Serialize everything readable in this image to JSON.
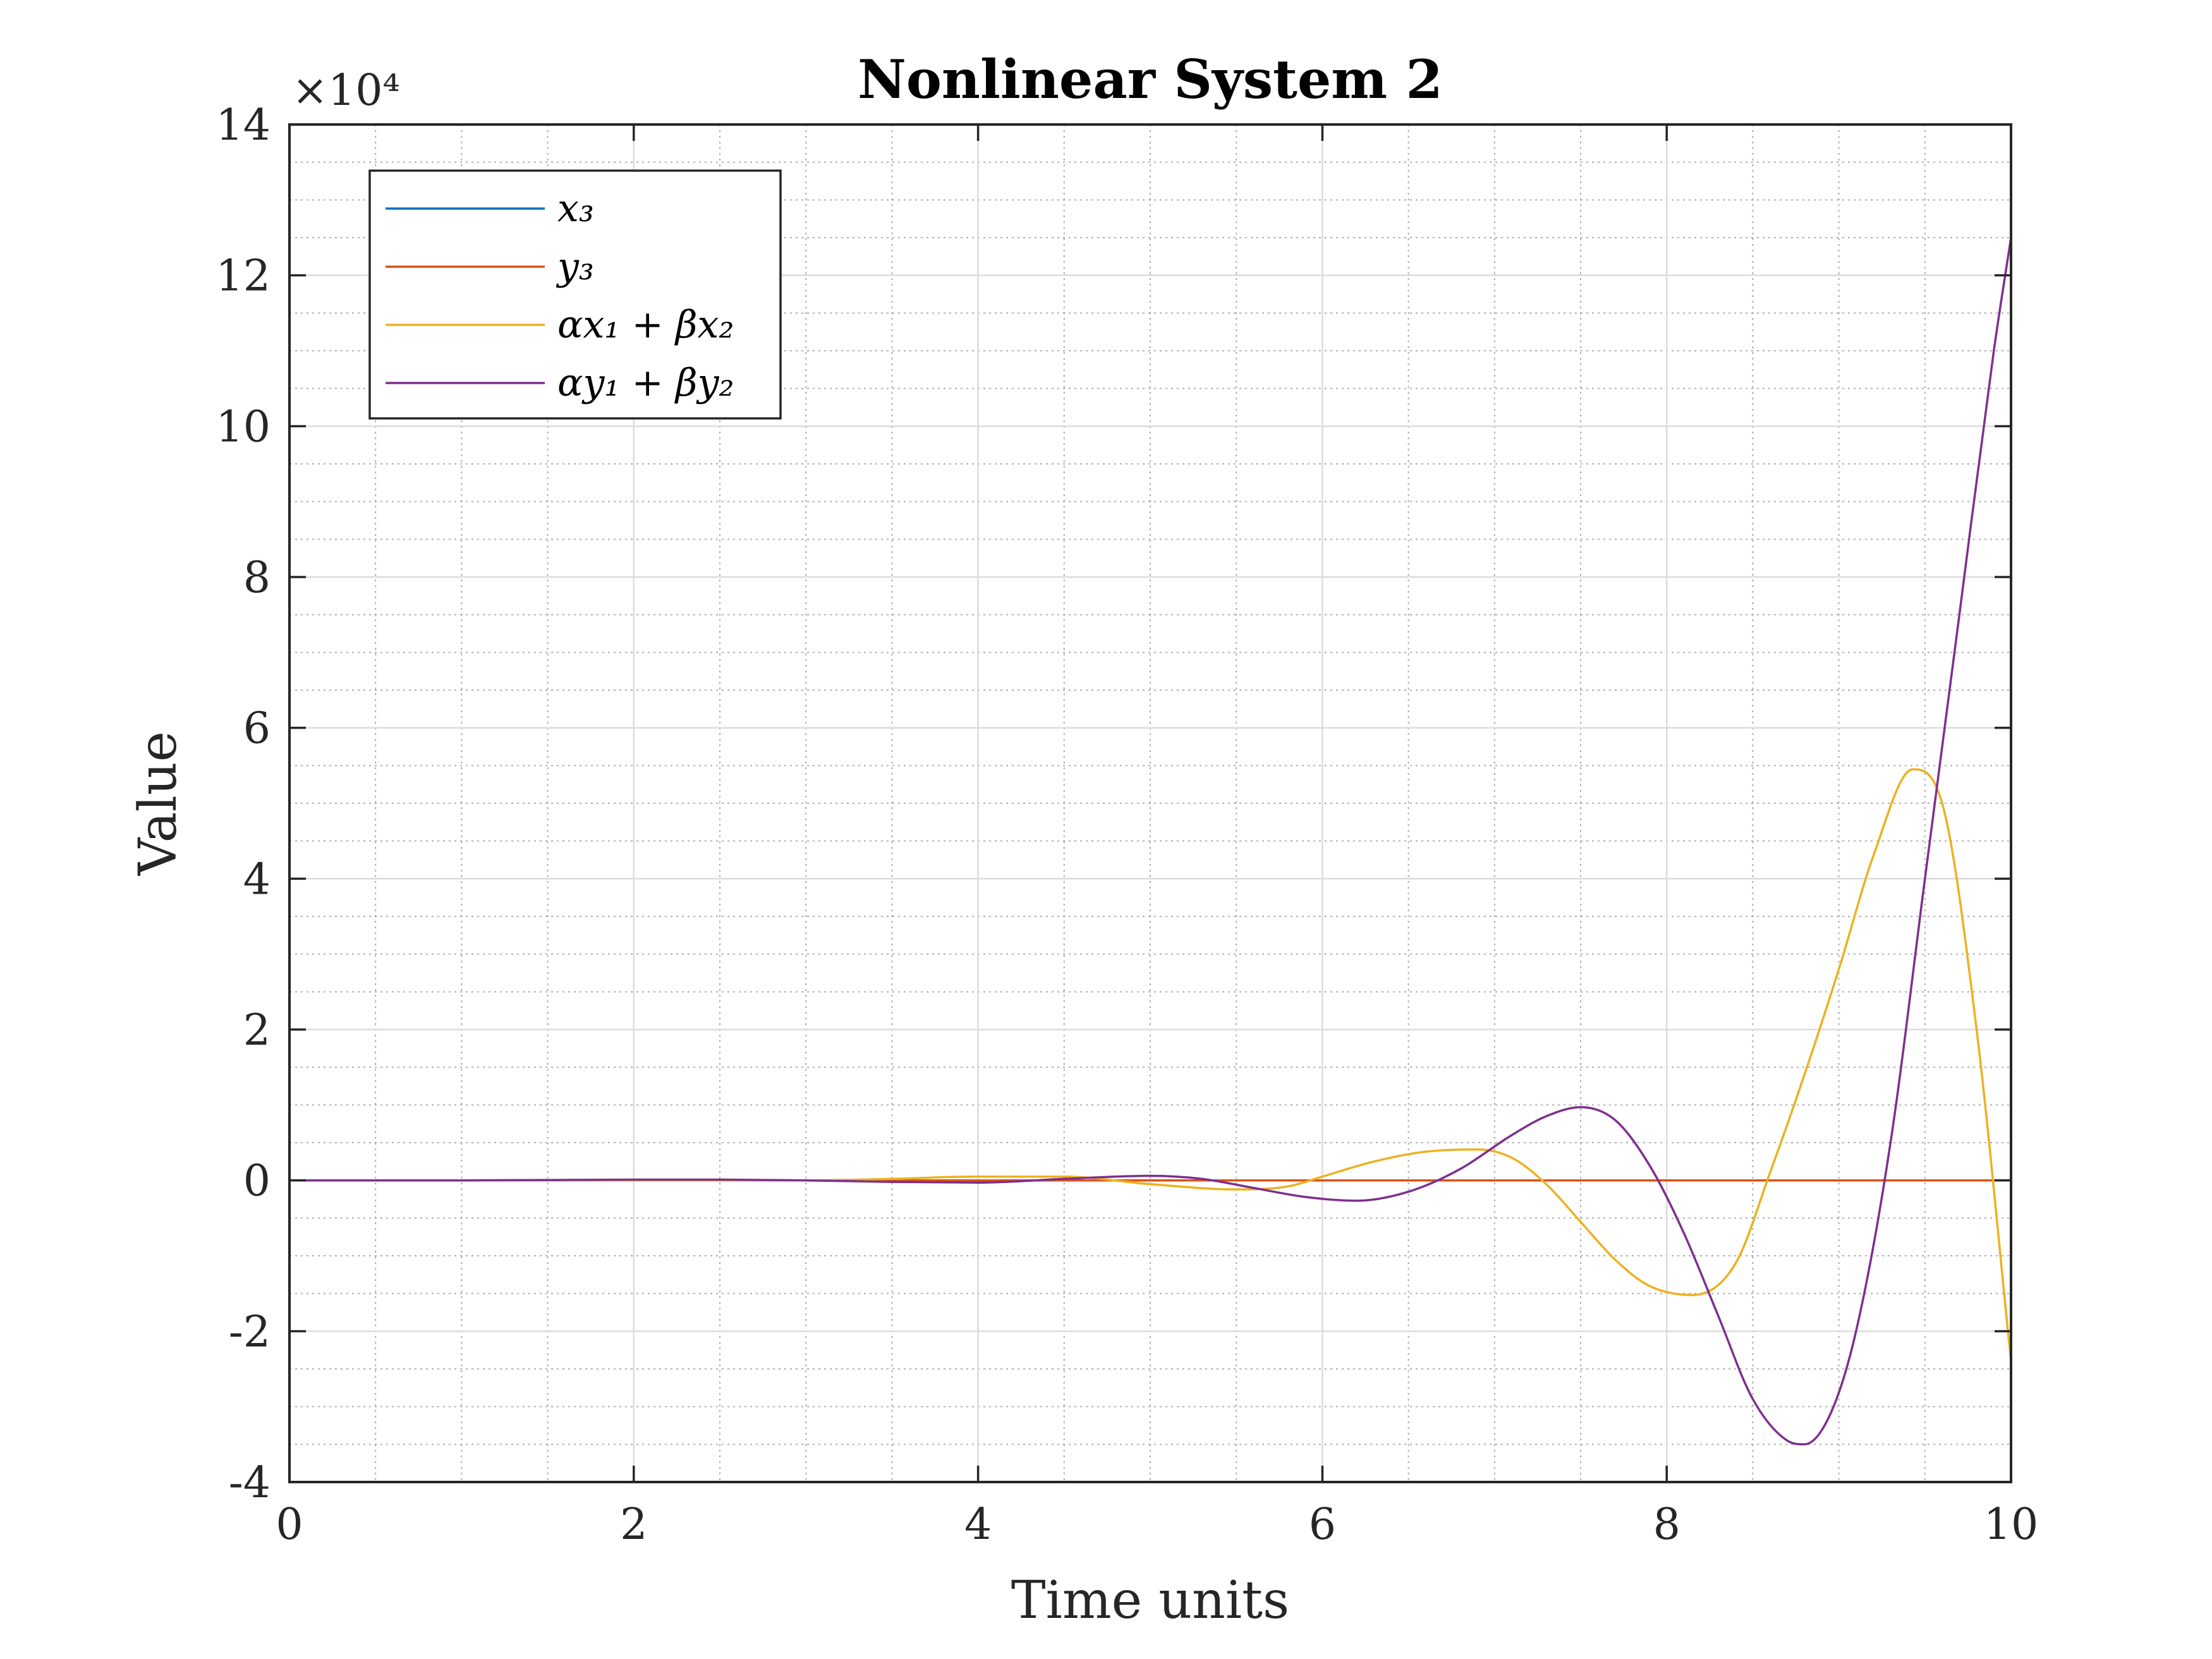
{
  "chart_data": {
    "type": "line",
    "title": "Nonlinear System 2",
    "xlabel": "Time units",
    "ylabel": "Value",
    "y_exponent_label": "×10⁴",
    "xlim": [
      0,
      10
    ],
    "ylim": [
      -4,
      14
    ],
    "y_unit_scale": 10000,
    "x_ticks": [
      0,
      2,
      4,
      6,
      8,
      10
    ],
    "x_tick_labels": [
      "0",
      "2",
      "4",
      "6",
      "8",
      "10"
    ],
    "y_ticks": [
      -4,
      -2,
      0,
      2,
      4,
      6,
      8,
      10,
      12,
      14
    ],
    "y_tick_labels": [
      "-4",
      "-2",
      "0",
      "2",
      "4",
      "6",
      "8",
      "10",
      "12",
      "14"
    ],
    "grid": true,
    "minor_grid": true,
    "legend_position": "top-left",
    "series": [
      {
        "name": "x₃",
        "color": "#0072BD",
        "x": [
          0,
          1,
          2,
          3,
          4,
          5,
          6,
          7,
          8,
          9,
          10
        ],
        "y": [
          0,
          0,
          0,
          0,
          0,
          0,
          0,
          0,
          0,
          0,
          0
        ]
      },
      {
        "name": "y₃",
        "color": "#D95319",
        "x": [
          0,
          1,
          2,
          3,
          4,
          5,
          6,
          7,
          8,
          9,
          10
        ],
        "y": [
          0,
          0,
          0,
          0,
          0,
          0,
          0,
          0,
          0,
          0,
          0
        ]
      },
      {
        "name": "αx₁ + βx₂",
        "color": "#EDB120",
        "x": [
          0,
          1.0,
          2.0,
          3.0,
          3.5,
          4.0,
          4.5,
          5.0,
          5.5,
          5.8,
          6.0,
          6.3,
          6.6,
          6.9,
          7.1,
          7.3,
          7.5,
          7.7,
          7.9,
          8.15,
          8.4,
          8.6,
          8.8,
          9.0,
          9.2,
          9.43,
          9.6,
          9.8,
          10.0
        ],
        "y": [
          0,
          0,
          0,
          0,
          0.02,
          0.05,
          0.05,
          -0.05,
          -0.12,
          -0.08,
          0.05,
          0.25,
          0.38,
          0.41,
          0.3,
          -0.05,
          -0.55,
          -1.05,
          -1.4,
          -1.52,
          -1.1,
          0.1,
          1.4,
          2.8,
          4.3,
          5.45,
          5.0,
          2.0,
          -2.4
        ]
      },
      {
        "name": "αy₁ + βy₂",
        "color": "#7E2F8E",
        "x": [
          0,
          1.0,
          2.0,
          2.5,
          3.0,
          3.5,
          4.0,
          4.5,
          5.0,
          5.3,
          5.6,
          5.9,
          6.2,
          6.5,
          6.8,
          7.1,
          7.3,
          7.5,
          7.7,
          7.9,
          8.1,
          8.3,
          8.5,
          8.7,
          8.8,
          8.95,
          9.1,
          9.3,
          9.5,
          9.7,
          9.9,
          10.0
        ],
        "y": [
          0,
          0,
          0.01,
          0.01,
          0,
          -0.02,
          -0.03,
          0.02,
          0.06,
          0.02,
          -0.1,
          -0.22,
          -0.27,
          -0.15,
          0.15,
          0.6,
          0.85,
          0.97,
          0.8,
          0.2,
          -0.7,
          -1.8,
          -2.9,
          -3.45,
          -3.5,
          -3.1,
          -2.0,
          0.5,
          4.0,
          7.5,
          11.0,
          12.5
        ]
      }
    ]
  }
}
